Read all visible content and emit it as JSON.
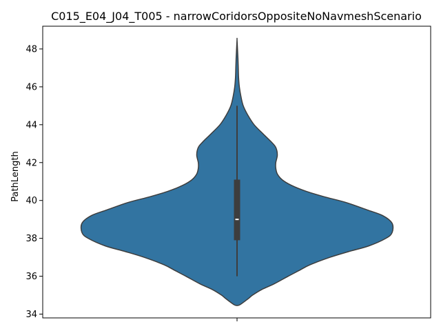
{
  "chart_data": {
    "type": "violin",
    "title": "C015_E04_J04_T005 - narrowCoridorsOppositeNoNavmeshScenario",
    "xlabel": "",
    "ylabel": "PathLength",
    "ylim": [
      33.8,
      49.2
    ],
    "yticks": [
      34,
      36,
      38,
      40,
      42,
      44,
      46,
      48
    ],
    "ytick_labels": [
      "34",
      "36",
      "38",
      "40",
      "42",
      "44",
      "46",
      "48"
    ],
    "colors": {
      "fill": "#3274a1",
      "edge": "#3d3d3d",
      "box": "#3d3d3d",
      "median": "#ffffff"
    },
    "density": [
      [
        34.45,
        0.0
      ],
      [
        34.5,
        0.02
      ],
      [
        34.8,
        0.07
      ],
      [
        35.0,
        0.1
      ],
      [
        35.3,
        0.16
      ],
      [
        35.6,
        0.24
      ],
      [
        36.0,
        0.33
      ],
      [
        36.3,
        0.4
      ],
      [
        36.6,
        0.47
      ],
      [
        37.0,
        0.6
      ],
      [
        37.3,
        0.72
      ],
      [
        37.6,
        0.85
      ],
      [
        38.0,
        0.96
      ],
      [
        38.3,
        1.0
      ],
      [
        38.8,
        1.0
      ],
      [
        39.2,
        0.94
      ],
      [
        39.5,
        0.84
      ],
      [
        39.9,
        0.7
      ],
      [
        40.2,
        0.56
      ],
      [
        40.5,
        0.44
      ],
      [
        40.8,
        0.35
      ],
      [
        41.1,
        0.29
      ],
      [
        41.4,
        0.26
      ],
      [
        41.7,
        0.25
      ],
      [
        42.0,
        0.25
      ],
      [
        42.4,
        0.26
      ],
      [
        42.8,
        0.25
      ],
      [
        43.1,
        0.22
      ],
      [
        43.5,
        0.17
      ],
      [
        44.0,
        0.11
      ],
      [
        44.5,
        0.07
      ],
      [
        45.0,
        0.04
      ],
      [
        45.5,
        0.025
      ],
      [
        46.0,
        0.015
      ],
      [
        46.5,
        0.01
      ],
      [
        47.0,
        0.008
      ],
      [
        47.5,
        0.006
      ],
      [
        48.0,
        0.003
      ],
      [
        48.5,
        0.0
      ]
    ],
    "box": {
      "whisker_low": 36.0,
      "q1": 37.9,
      "median": 39.0,
      "q3": 41.1,
      "whisker_high": 45.0
    }
  }
}
